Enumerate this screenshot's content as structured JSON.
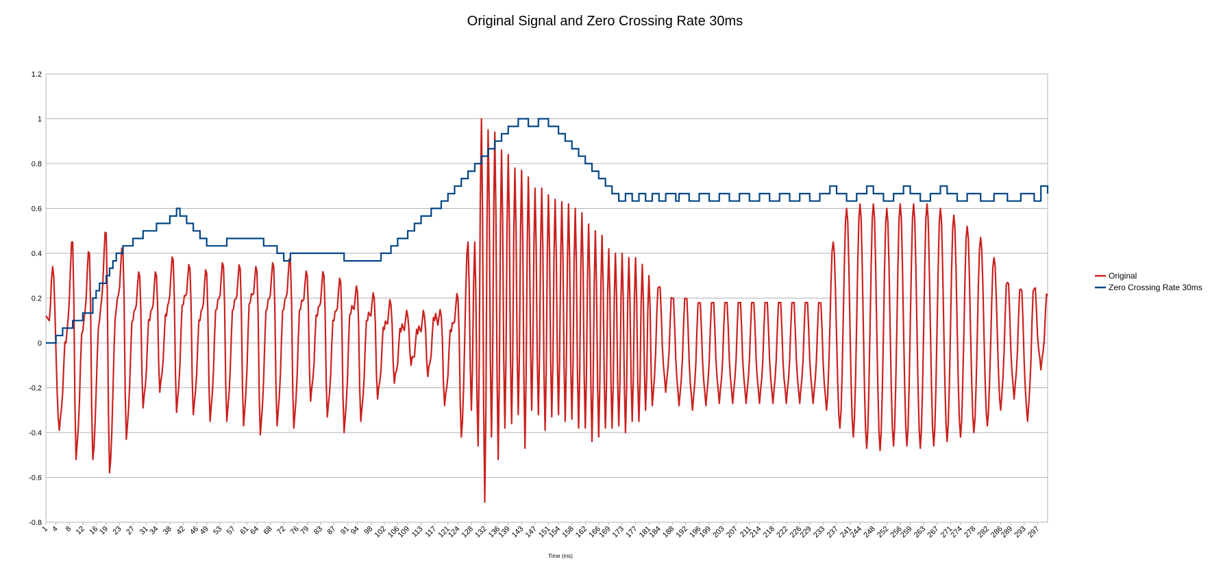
{
  "chart_data": {
    "type": "line",
    "title": "Original Signal and Zero Crossing Rate 30ms",
    "xlabel": "Time (ms)",
    "ylabel": "",
    "ylim": [
      -0.8,
      1.2
    ],
    "yticks": [
      1.2,
      1,
      0.8,
      0.6,
      0.4,
      0.2,
      0,
      -0.2,
      -0.4,
      -0.6,
      -0.8
    ],
    "xlim": [
      1,
      300
    ],
    "x_tick_labels": [
      "1",
      "4",
      "8",
      "12",
      "16",
      "19",
      "23",
      "27",
      "31",
      "34",
      "38",
      "42",
      "46",
      "49",
      "53",
      "57",
      "61",
      "64",
      "68",
      "72",
      "76",
      "79",
      "83",
      "87",
      "91",
      "94",
      "98",
      "102",
      "106",
      "109",
      "113",
      "117",
      "121",
      "124",
      "128",
      "132",
      "136",
      "139",
      "143",
      "147",
      "151",
      "154",
      "158",
      "162",
      "166",
      "169",
      "173",
      "177",
      "181",
      "184",
      "188",
      "192",
      "196",
      "199",
      "203",
      "207",
      "211",
      "214",
      "218",
      "222",
      "226",
      "229",
      "233",
      "237",
      "241",
      "244",
      "248",
      "252",
      "256",
      "259",
      "263",
      "267",
      "271",
      "274",
      "278",
      "282",
      "286",
      "289",
      "293",
      "297"
    ],
    "grid": true,
    "legend_position": "right",
    "series": [
      {
        "name": "Original",
        "color": "#c9211e",
        "peaks": [
          [
            1,
            0.12
          ],
          [
            2,
            0.1
          ],
          [
            3,
            0.34
          ],
          [
            5,
            -0.39
          ],
          [
            7,
            0.0
          ],
          [
            9,
            0.45
          ],
          [
            10,
            -0.52
          ],
          [
            12,
            0.05
          ],
          [
            14,
            0.4
          ],
          [
            15,
            -0.52
          ],
          [
            17,
            0.1
          ],
          [
            19,
            0.49
          ],
          [
            20,
            -0.58
          ],
          [
            22,
            0.15
          ],
          [
            24,
            0.41
          ],
          [
            25,
            -0.43
          ],
          [
            27,
            0.1
          ],
          [
            29,
            0.3
          ],
          [
            30,
            -0.29
          ],
          [
            32,
            0.1
          ],
          [
            34,
            0.3
          ],
          [
            35,
            -0.22
          ],
          [
            37,
            0.12
          ],
          [
            39,
            0.37
          ],
          [
            40,
            -0.31
          ],
          [
            42,
            0.17
          ],
          [
            44,
            0.33
          ],
          [
            45,
            -0.32
          ],
          [
            47,
            0.1
          ],
          [
            49,
            0.31
          ],
          [
            50,
            -0.35
          ],
          [
            52,
            0.15
          ],
          [
            54,
            0.34
          ],
          [
            55,
            -0.35
          ],
          [
            57,
            0.15
          ],
          [
            59,
            0.33
          ],
          [
            60,
            -0.37
          ],
          [
            62,
            0.18
          ],
          [
            64,
            0.32
          ],
          [
            65,
            -0.41
          ],
          [
            67,
            0.15
          ],
          [
            69,
            0.34
          ],
          [
            70,
            -0.37
          ],
          [
            72,
            0.15
          ],
          [
            74,
            0.36
          ],
          [
            75,
            -0.38
          ],
          [
            77,
            0.15
          ],
          [
            79,
            0.3
          ],
          [
            80,
            -0.26
          ],
          [
            82,
            0.12
          ],
          [
            84,
            0.3
          ],
          [
            85,
            -0.33
          ],
          [
            87,
            0.1
          ],
          [
            89,
            0.27
          ],
          [
            90,
            -0.4
          ],
          [
            92,
            0.13
          ],
          [
            94,
            0.23
          ],
          [
            95,
            -0.35
          ],
          [
            97,
            0.1
          ],
          [
            99,
            0.2
          ],
          [
            100,
            -0.25
          ],
          [
            102,
            0.06
          ],
          [
            104,
            0.17
          ],
          [
            105,
            -0.18
          ],
          [
            107,
            0.05
          ],
          [
            109,
            0.12
          ],
          [
            110,
            -0.1
          ],
          [
            112,
            0.04
          ],
          [
            114,
            0.12
          ],
          [
            115,
            -0.15
          ],
          [
            117,
            0.1
          ],
          [
            119,
            0.12
          ],
          [
            120,
            -0.28
          ],
          [
            122,
            0.05
          ],
          [
            124,
            0.2
          ],
          [
            125,
            -0.42
          ],
          [
            127,
            0.45
          ],
          [
            128,
            -0.3
          ],
          [
            129,
            0.45
          ],
          [
            130,
            -0.46
          ],
          [
            131,
            1.0
          ],
          [
            132,
            -0.71
          ],
          [
            133,
            0.95
          ],
          [
            134,
            -0.42
          ],
          [
            135,
            0.94
          ],
          [
            136,
            -0.52
          ],
          [
            137,
            0.86
          ],
          [
            138,
            -0.38
          ],
          [
            139,
            0.84
          ],
          [
            140,
            -0.36
          ],
          [
            141,
            0.78
          ],
          [
            142,
            -0.32
          ],
          [
            143,
            0.77
          ],
          [
            144,
            -0.47
          ],
          [
            145,
            0.74
          ],
          [
            146,
            -0.3
          ],
          [
            147,
            0.69
          ],
          [
            148,
            -0.32
          ],
          [
            149,
            0.69
          ],
          [
            150,
            -0.39
          ],
          [
            151,
            0.66
          ],
          [
            152,
            -0.33
          ],
          [
            153,
            0.64
          ],
          [
            154,
            -0.32
          ],
          [
            155,
            0.63
          ],
          [
            156,
            -0.35
          ],
          [
            157,
            0.62
          ],
          [
            158,
            -0.34
          ],
          [
            159,
            0.6
          ],
          [
            160,
            -0.38
          ],
          [
            161,
            0.58
          ],
          [
            162,
            -0.38
          ],
          [
            163,
            0.53
          ],
          [
            164,
            -0.44
          ],
          [
            165,
            0.5
          ],
          [
            166,
            -0.42
          ],
          [
            167,
            0.48
          ],
          [
            168,
            -0.38
          ],
          [
            169,
            0.42
          ],
          [
            170,
            -0.38
          ],
          [
            171,
            0.4
          ],
          [
            172,
            -0.37
          ],
          [
            173,
            0.4
          ],
          [
            174,
            -0.4
          ],
          [
            175,
            0.38
          ],
          [
            176,
            -0.35
          ],
          [
            177,
            0.38
          ],
          [
            178,
            -0.35
          ],
          [
            179,
            0.35
          ],
          [
            180,
            -0.3
          ],
          [
            181,
            0.3
          ],
          [
            182,
            -0.28
          ],
          [
            184,
            0.25
          ],
          [
            186,
            -0.22
          ],
          [
            188,
            0.2
          ],
          [
            190,
            -0.28
          ],
          [
            192,
            0.2
          ],
          [
            194,
            -0.3
          ],
          [
            196,
            0.18
          ],
          [
            198,
            -0.28
          ],
          [
            200,
            0.18
          ],
          [
            202,
            -0.27
          ],
          [
            204,
            0.18
          ],
          [
            206,
            -0.27
          ],
          [
            208,
            0.18
          ],
          [
            210,
            -0.27
          ],
          [
            212,
            0.18
          ],
          [
            214,
            -0.27
          ],
          [
            216,
            0.18
          ],
          [
            218,
            -0.27
          ],
          [
            220,
            0.18
          ],
          [
            222,
            -0.27
          ],
          [
            224,
            0.18
          ],
          [
            226,
            -0.27
          ],
          [
            228,
            0.18
          ],
          [
            230,
            -0.27
          ],
          [
            232,
            0.18
          ],
          [
            234,
            -0.3
          ],
          [
            236,
            0.45
          ],
          [
            238,
            -0.38
          ],
          [
            240,
            0.6
          ],
          [
            242,
            -0.42
          ],
          [
            244,
            0.62
          ],
          [
            246,
            -0.47
          ],
          [
            248,
            0.62
          ],
          [
            250,
            -0.48
          ],
          [
            252,
            0.6
          ],
          [
            254,
            -0.46
          ],
          [
            256,
            0.62
          ],
          [
            258,
            -0.46
          ],
          [
            260,
            0.62
          ],
          [
            262,
            -0.47
          ],
          [
            264,
            0.62
          ],
          [
            266,
            -0.46
          ],
          [
            268,
            0.6
          ],
          [
            270,
            -0.44
          ],
          [
            272,
            0.57
          ],
          [
            274,
            -0.42
          ],
          [
            276,
            0.52
          ],
          [
            278,
            -0.4
          ],
          [
            280,
            0.47
          ],
          [
            282,
            -0.37
          ],
          [
            284,
            0.38
          ],
          [
            286,
            -0.3
          ],
          [
            288,
            0.27
          ],
          [
            290,
            -0.25
          ],
          [
            292,
            0.24
          ],
          [
            294,
            -0.35
          ],
          [
            296,
            0.24
          ],
          [
            298,
            -0.12
          ],
          [
            300,
            0.21
          ]
        ]
      },
      {
        "name": "Zero Crossing Rate 30ms",
        "color": "#004586",
        "steps": [
          [
            1,
            0.0
          ],
          [
            4,
            0.033
          ],
          [
            6,
            0.066
          ],
          [
            9,
            0.1
          ],
          [
            12,
            0.133
          ],
          [
            15,
            0.2
          ],
          [
            16,
            0.233
          ],
          [
            17,
            0.266
          ],
          [
            19,
            0.3
          ],
          [
            20,
            0.333
          ],
          [
            21,
            0.366
          ],
          [
            22,
            0.4
          ],
          [
            24,
            0.433
          ],
          [
            27,
            0.466
          ],
          [
            30,
            0.5
          ],
          [
            34,
            0.533
          ],
          [
            38,
            0.566
          ],
          [
            40,
            0.6
          ],
          [
            41,
            0.566
          ],
          [
            43,
            0.533
          ],
          [
            45,
            0.5
          ],
          [
            47,
            0.466
          ],
          [
            49,
            0.433
          ],
          [
            55,
            0.466
          ],
          [
            66,
            0.433
          ],
          [
            70,
            0.4
          ],
          [
            72,
            0.366
          ],
          [
            74,
            0.4
          ],
          [
            90,
            0.366
          ],
          [
            101,
            0.4
          ],
          [
            104,
            0.433
          ],
          [
            106,
            0.466
          ],
          [
            109,
            0.5
          ],
          [
            111,
            0.533
          ],
          [
            113,
            0.566
          ],
          [
            116,
            0.6
          ],
          [
            119,
            0.633
          ],
          [
            121,
            0.666
          ],
          [
            123,
            0.7
          ],
          [
            125,
            0.733
          ],
          [
            127,
            0.766
          ],
          [
            129,
            0.8
          ],
          [
            131,
            0.833
          ],
          [
            133,
            0.866
          ],
          [
            135,
            0.9
          ],
          [
            137,
            0.933
          ],
          [
            139,
            0.966
          ],
          [
            142,
            1.0
          ],
          [
            145,
            0.966
          ],
          [
            148,
            1.0
          ],
          [
            151,
            0.966
          ],
          [
            154,
            0.933
          ],
          [
            156,
            0.9
          ],
          [
            158,
            0.866
          ],
          [
            160,
            0.833
          ],
          [
            162,
            0.8
          ],
          [
            164,
            0.766
          ],
          [
            166,
            0.733
          ],
          [
            168,
            0.7
          ],
          [
            170,
            0.666
          ],
          [
            172,
            0.633
          ],
          [
            174,
            0.666
          ],
          [
            176,
            0.633
          ],
          [
            178,
            0.666
          ],
          [
            180,
            0.633
          ],
          [
            182,
            0.666
          ],
          [
            184,
            0.633
          ],
          [
            186,
            0.666
          ],
          [
            189,
            0.633
          ],
          [
            190,
            0.666
          ],
          [
            193,
            0.633
          ],
          [
            196,
            0.666
          ],
          [
            199,
            0.633
          ],
          [
            202,
            0.666
          ],
          [
            205,
            0.633
          ],
          [
            208,
            0.666
          ],
          [
            211,
            0.633
          ],
          [
            214,
            0.666
          ],
          [
            217,
            0.633
          ],
          [
            220,
            0.666
          ],
          [
            223,
            0.633
          ],
          [
            226,
            0.666
          ],
          [
            229,
            0.633
          ],
          [
            232,
            0.666
          ],
          [
            235,
            0.7
          ],
          [
            237,
            0.666
          ],
          [
            240,
            0.633
          ],
          [
            243,
            0.666
          ],
          [
            246,
            0.7
          ],
          [
            248,
            0.666
          ],
          [
            251,
            0.633
          ],
          [
            254,
            0.666
          ],
          [
            257,
            0.7
          ],
          [
            259,
            0.666
          ],
          [
            262,
            0.633
          ],
          [
            265,
            0.666
          ],
          [
            268,
            0.7
          ],
          [
            270,
            0.666
          ],
          [
            273,
            0.633
          ],
          [
            276,
            0.666
          ],
          [
            280,
            0.633
          ],
          [
            284,
            0.666
          ],
          [
            288,
            0.633
          ],
          [
            292,
            0.666
          ],
          [
            296,
            0.633
          ],
          [
            298,
            0.7
          ],
          [
            300,
            0.666
          ]
        ]
      }
    ]
  }
}
